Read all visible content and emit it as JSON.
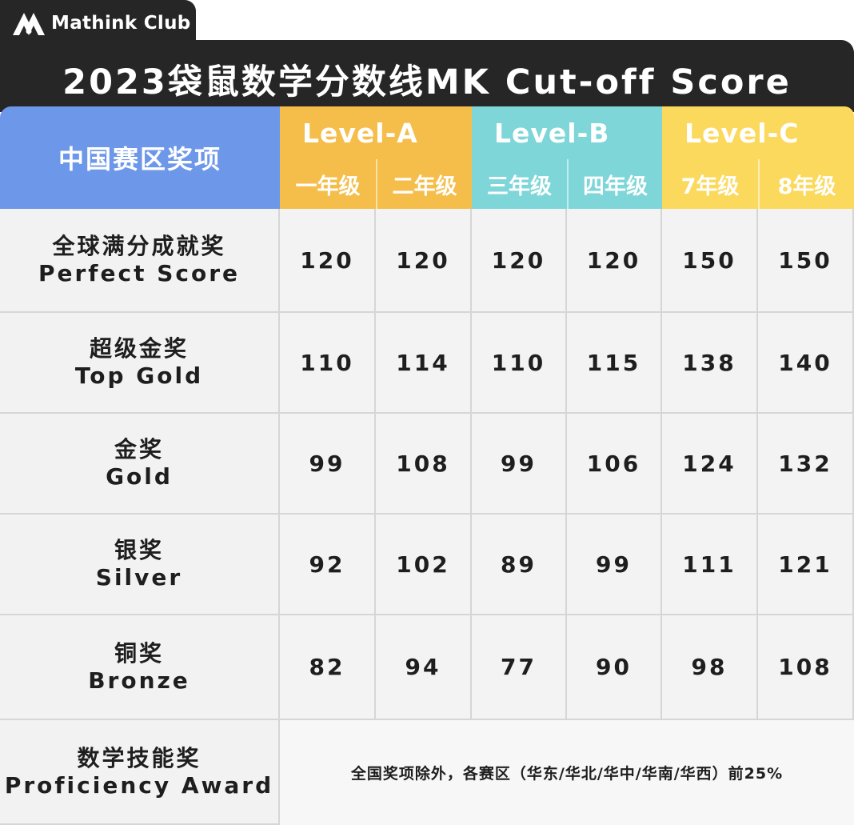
{
  "brand": {
    "name": "Mathink Club",
    "logo_icon": "mathink-logo-icon"
  },
  "title": "2023袋鼠数学分数线MK Cut-off Score",
  "header": {
    "award_label": "中国赛区奖项",
    "levels": [
      {
        "label": "Level-A",
        "color": "#f5be4b",
        "grades": [
          "一年级",
          "二年级"
        ]
      },
      {
        "label": "Level-B",
        "color": "#7ed6d9",
        "grades": [
          "三年级",
          "四年级"
        ]
      },
      {
        "label": "Level-C",
        "color": "#fbd95d",
        "grades": [
          "7年级",
          "8年级"
        ]
      }
    ],
    "award_color": "#6d97e9"
  },
  "rows": [
    {
      "cn": "全球满分成就奖",
      "en": "Perfect Score",
      "scores": [
        "120",
        "120",
        "120",
        "120",
        "150",
        "150"
      ]
    },
    {
      "cn": "超级金奖",
      "en": "Top Gold",
      "scores": [
        "110",
        "114",
        "110",
        "115",
        "138",
        "140"
      ]
    },
    {
      "cn": "金奖",
      "en": "Gold",
      "scores": [
        "99",
        "108",
        "99",
        "106",
        "124",
        "132"
      ]
    },
    {
      "cn": "银奖",
      "en": "Silver",
      "scores": [
        "92",
        "102",
        "89",
        "99",
        "111",
        "121"
      ]
    },
    {
      "cn": "铜奖",
      "en": "Bronze",
      "scores": [
        "82",
        "94",
        "77",
        "90",
        "98",
        "108"
      ]
    }
  ],
  "proficiency": {
    "cn": "数学技能奖",
    "en": "Proficiency Award",
    "note": "全国奖项除外，各赛区（华东/华北/华中/华南/华西）前25%"
  },
  "chart_data": {
    "type": "table",
    "title": "2023袋鼠数学分数线MK Cut-off Score",
    "columns": [
      "一年级",
      "二年级",
      "三年级",
      "四年级",
      "7年级",
      "8年级"
    ],
    "column_groups": [
      {
        "name": "Level-A",
        "columns": [
          "一年级",
          "二年级"
        ]
      },
      {
        "name": "Level-B",
        "columns": [
          "三年级",
          "四年级"
        ]
      },
      {
        "name": "Level-C",
        "columns": [
          "7年级",
          "8年级"
        ]
      }
    ],
    "series": [
      {
        "name": "Perfect Score",
        "values": [
          120,
          120,
          120,
          120,
          150,
          150
        ]
      },
      {
        "name": "Top Gold",
        "values": [
          110,
          114,
          110,
          115,
          138,
          140
        ]
      },
      {
        "name": "Gold",
        "values": [
          99,
          108,
          99,
          106,
          124,
          132
        ]
      },
      {
        "name": "Silver",
        "values": [
          92,
          102,
          89,
          99,
          111,
          121
        ]
      },
      {
        "name": "Bronze",
        "values": [
          82,
          94,
          77,
          90,
          98,
          108
        ]
      }
    ]
  }
}
